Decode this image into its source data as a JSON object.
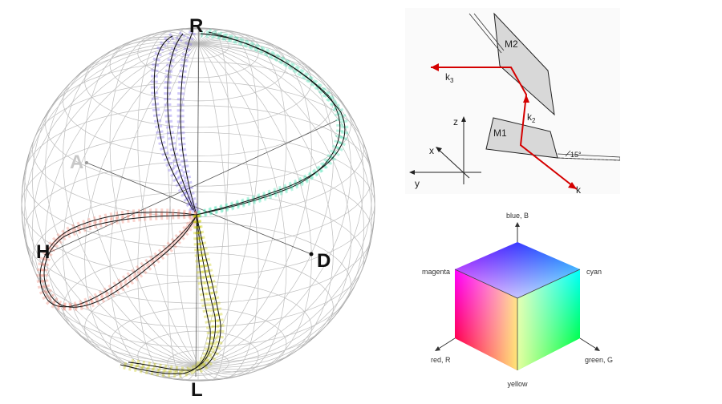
{
  "sphere": {
    "labels": {
      "top": "R",
      "left_front": "H",
      "left_back": "A",
      "right": "D",
      "bottom": "L"
    },
    "colors": {
      "grid": "#bdbdbd",
      "R": "#7b68ee",
      "H": "#f08070",
      "L": "#c8c800",
      "D": "#40e0b0",
      "A": "#c0c0c0"
    }
  },
  "mirror_diagram": {
    "mirror1_label": "M1",
    "mirror2_label": "M2",
    "beam_labels": {
      "k1": "k",
      "k2": "k",
      "k2_sub": "2",
      "k3": "k",
      "k3_sub": "3"
    },
    "axes": {
      "x": "x",
      "y": "y",
      "z": "z"
    },
    "angle_label": "15°",
    "beam_color": "#d40000"
  },
  "color_cube": {
    "labels": {
      "blue": "blue, B",
      "magenta": "magenta",
      "cyan": "cyan",
      "red": "red, R",
      "green": "green, G",
      "yellow": "yellow"
    }
  }
}
